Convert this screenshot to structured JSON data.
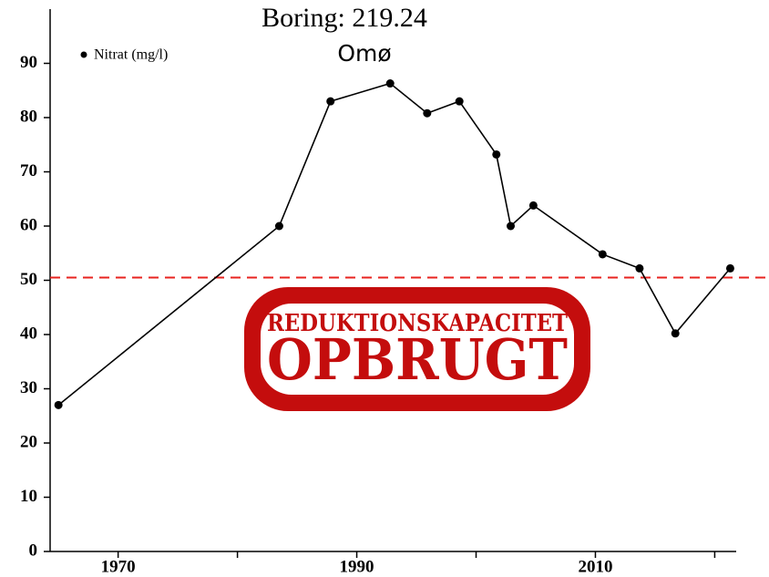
{
  "chart_data": {
    "type": "line",
    "title": "Boring: 219.24",
    "subtitle": "Omø",
    "series": [
      {
        "name": "Nitrat (mg/l)",
        "color": "#000000",
        "x": [
          1965,
          1983.5,
          1987.8,
          1992.8,
          1995.9,
          1998.6,
          2001.7,
          2002.9,
          2004.8,
          2010.6,
          2013.7,
          2016.7,
          2021.3
        ],
        "values": [
          27,
          60,
          83,
          86.3,
          80.8,
          83,
          73.2,
          60,
          63.8,
          54.8,
          52.2,
          40.2,
          52.2
        ]
      }
    ],
    "xlim": [
      1964.3,
      2021.8
    ],
    "xticks": [
      1970,
      1990,
      2010
    ],
    "xminorticks": [
      1980,
      2000,
      2020
    ],
    "ylim": [
      0,
      100
    ],
    "yticks": [
      0,
      10,
      20,
      30,
      40,
      50,
      60,
      70,
      80,
      90
    ],
    "threshold": {
      "value": 50.5,
      "color": "#e8231f"
    },
    "stamp": {
      "line1": "REDUKTIONSKAPACITET",
      "line2": "OPBRUGT",
      "color": "#c40d0d"
    },
    "legend": "upper-left"
  }
}
